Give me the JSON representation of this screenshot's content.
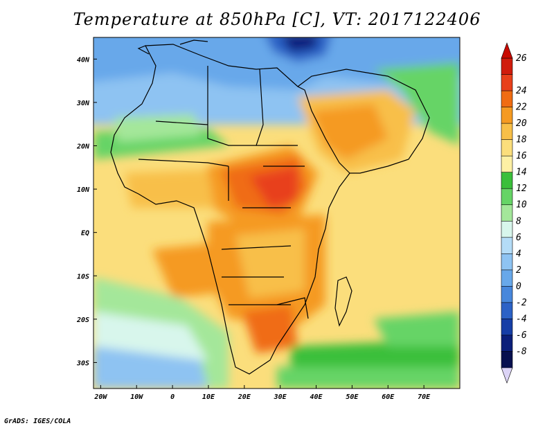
{
  "title": "Temperature at 850hPa [C], VT: 2017122406",
  "credit": "GrADS: IGES/COLA",
  "map": {
    "lon_labels": [
      "20W",
      "10W",
      "0",
      "10E",
      "20E",
      "30E",
      "40E",
      "50E",
      "60E",
      "70E"
    ],
    "lat_labels": [
      "40N",
      "30N",
      "20N",
      "10N",
      "EQ",
      "10S",
      "20S",
      "30S"
    ],
    "lon_values": [
      -20,
      -10,
      0,
      10,
      20,
      30,
      40,
      50,
      60,
      70
    ],
    "lat_values": [
      40,
      30,
      20,
      10,
      0,
      -10,
      -20,
      -30
    ],
    "lon_range": [
      -22,
      80
    ],
    "lat_range": [
      -36,
      45
    ]
  },
  "colorbar": {
    "labels": [
      "26",
      "24",
      "22",
      "20",
      "18",
      "16",
      "14",
      "12",
      "10",
      "8",
      "6",
      "4",
      "2",
      "0",
      "-2",
      "-4",
      "-6",
      "-8"
    ],
    "colors": [
      "#d01c0c",
      "#e8401a",
      "#f06c12",
      "#f59a22",
      "#f8bf48",
      "#fbde7c",
      "#fdf0a4",
      "#3bbf3b",
      "#66d466",
      "#a4e79a",
      "#d8f6ec",
      "#b4dcf7",
      "#8ec3f2",
      "#68a8ea",
      "#4787dc",
      "#2c62c6",
      "#163ea6",
      "#0b1f7a",
      "#07104f"
    ],
    "top_arrow_color": "#c80a00",
    "bottom_arrow_color": "#dcd4f6"
  }
}
